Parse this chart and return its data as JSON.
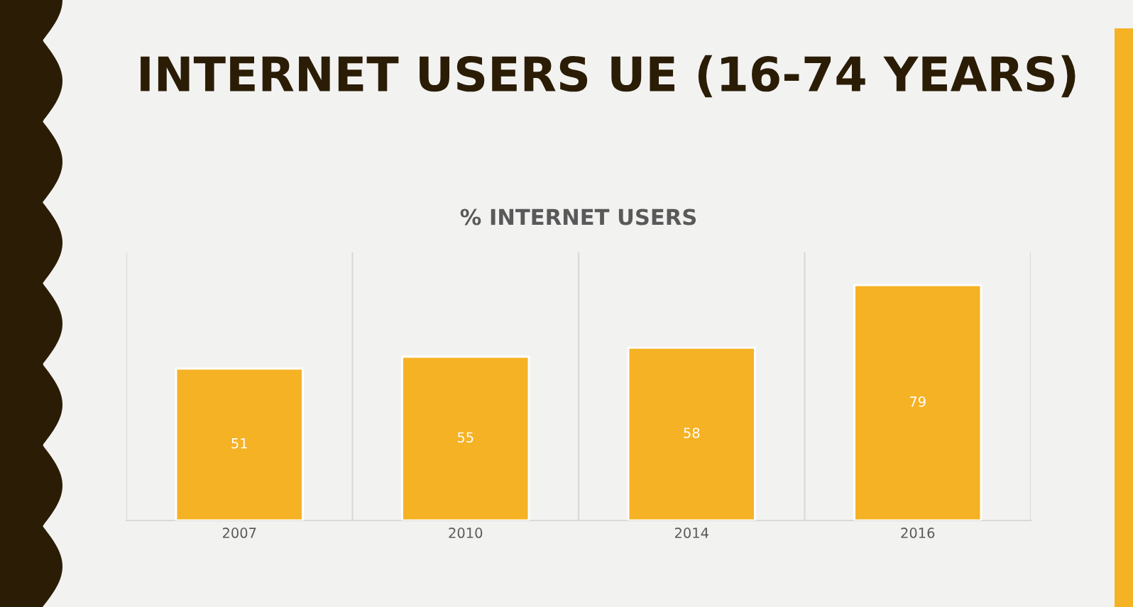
{
  "chart_data": {
    "type": "bar",
    "title": "INTERNET USERS UE (16-74 YEARS)",
    "subtitle": "% INTERNET USERS",
    "categories": [
      "2007",
      "2010",
      "2014",
      "2016"
    ],
    "values": [
      51,
      55,
      58,
      79
    ],
    "color": "#f6b225",
    "ylim": [
      0,
      90
    ],
    "data_labels": true,
    "grid": "x"
  }
}
